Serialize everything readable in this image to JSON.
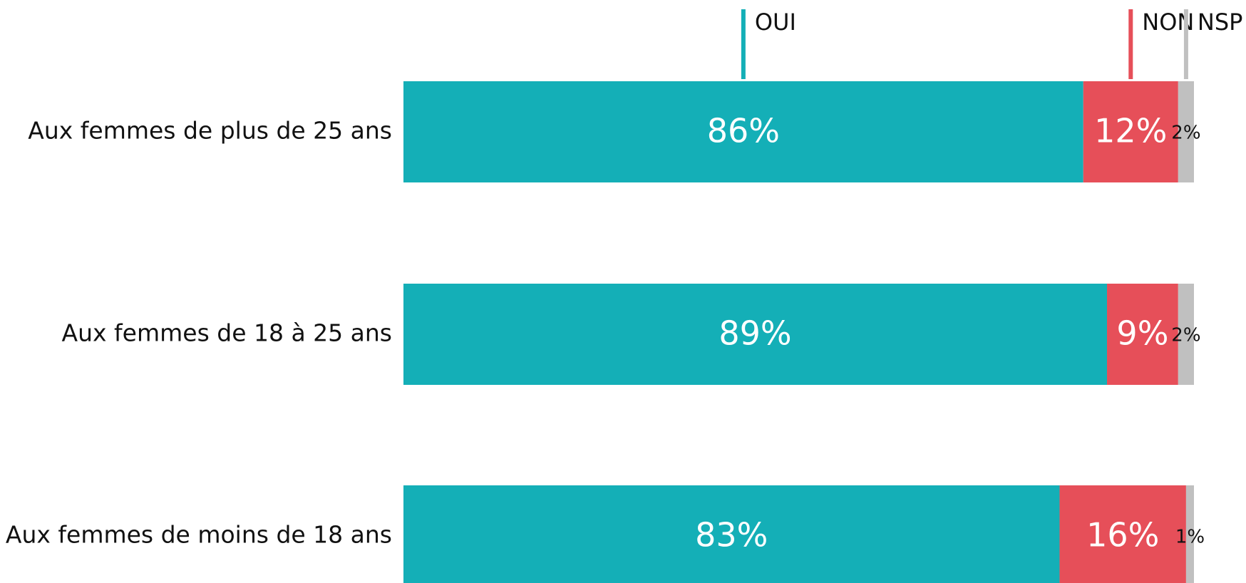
{
  "chart_data": {
    "type": "stacked-barh",
    "categories": [
      "Aux femmes de plus de 25 ans",
      "Aux femmes de 18 à 25 ans",
      "Aux femmes de moins de 18 ans"
    ],
    "series": [
      {
        "name": "OUI",
        "color": "#14afb7",
        "label_color": "#ffffff",
        "values": [
          86,
          89,
          83
        ],
        "value_labels": [
          "86%",
          "89%",
          "83%"
        ]
      },
      {
        "name": "NON",
        "color": "#e64f59",
        "label_color": "#ffffff",
        "values": [
          12,
          9,
          16
        ],
        "value_labels": [
          "12%",
          "9%",
          "16%"
        ]
      },
      {
        "name": "NSP",
        "color": "#c0c0c0",
        "label_color": "#111111",
        "values": [
          2,
          2,
          1
        ],
        "value_labels": [
          "2%",
          "2%",
          "1%"
        ]
      }
    ],
    "legend": "top"
  }
}
